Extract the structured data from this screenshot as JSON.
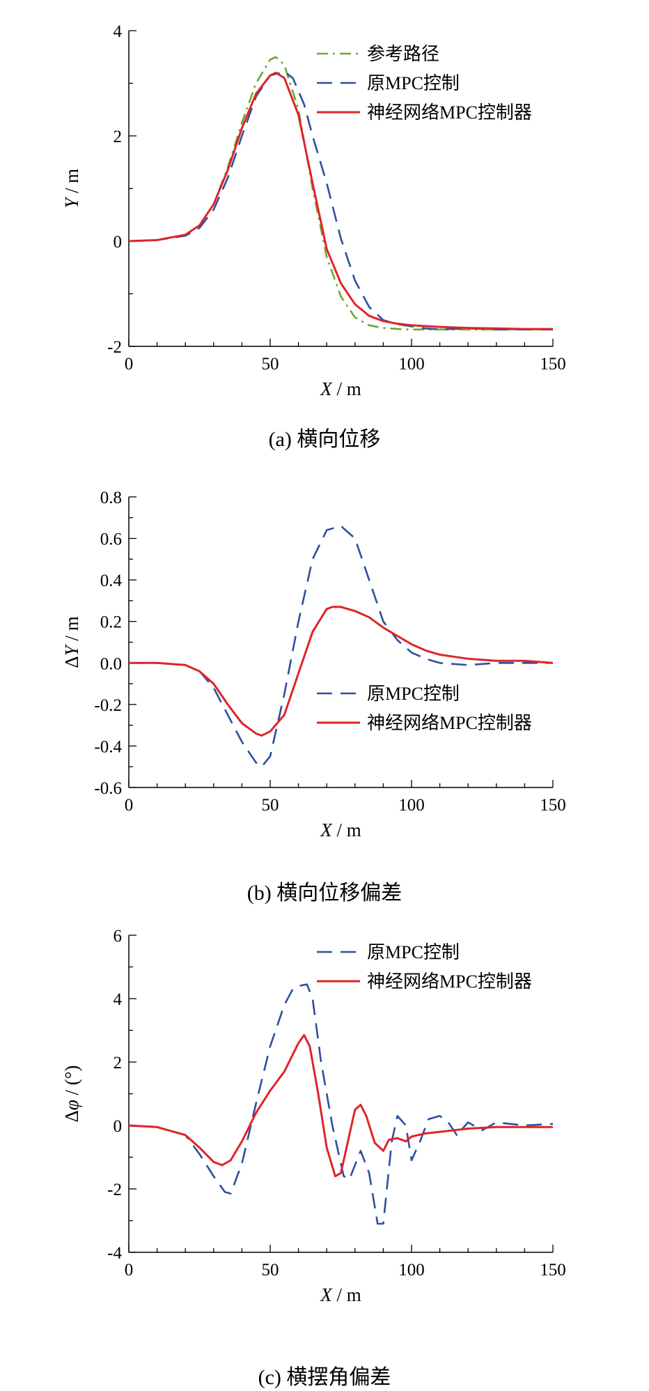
{
  "chart_data": [
    {
      "type": "line",
      "caption": "(a)  横向位移",
      "ylabel_italic": "Y",
      "ylabel_unit": " / m",
      "xlabel_italic": "X",
      "xlabel_unit": " / m",
      "xlim": [
        0,
        150
      ],
      "ylim": [
        -2,
        4
      ],
      "xticks": [
        0,
        50,
        100,
        150
      ],
      "yticks": [
        -2,
        0,
        2,
        4
      ],
      "legend_position": "top-right",
      "series": [
        {
          "name": "参考路径",
          "color": "#6aaa2a",
          "style": "dashdot",
          "x": [
            0,
            10,
            20,
            25,
            30,
            35,
            40,
            45,
            50,
            52,
            55,
            60,
            65,
            70,
            75,
            80,
            85,
            90,
            95,
            100,
            110,
            120,
            130,
            140,
            150
          ],
          "y": [
            0,
            0.02,
            0.12,
            0.3,
            0.7,
            1.4,
            2.25,
            3.0,
            3.45,
            3.5,
            3.35,
            2.5,
            1.0,
            -0.3,
            -1.05,
            -1.45,
            -1.6,
            -1.65,
            -1.67,
            -1.68,
            -1.68,
            -1.68,
            -1.68,
            -1.68,
            -1.68
          ]
        },
        {
          "name": "原MPC控制",
          "color": "#2d4f9e",
          "style": "dashed",
          "x": [
            0,
            10,
            20,
            25,
            30,
            35,
            40,
            45,
            50,
            55,
            58,
            62,
            65,
            70,
            75,
            80,
            85,
            90,
            95,
            100,
            105,
            110,
            120,
            130,
            140,
            150
          ],
          "y": [
            0,
            0.02,
            0.1,
            0.25,
            0.6,
            1.2,
            2.0,
            2.75,
            3.15,
            3.22,
            3.1,
            2.6,
            2.0,
            1.1,
            0.05,
            -0.75,
            -1.25,
            -1.5,
            -1.58,
            -1.62,
            -1.66,
            -1.68,
            -1.66,
            -1.68,
            -1.68,
            -1.68
          ]
        },
        {
          "name": "神经网络MPC控制器",
          "color": "#e0232a",
          "style": "solid",
          "x": [
            0,
            10,
            20,
            25,
            30,
            35,
            40,
            45,
            50,
            52,
            55,
            60,
            65,
            70,
            75,
            80,
            85,
            90,
            95,
            100,
            110,
            120,
            130,
            140,
            150
          ],
          "y": [
            0,
            0.02,
            0.12,
            0.3,
            0.7,
            1.35,
            2.15,
            2.8,
            3.15,
            3.2,
            3.1,
            2.4,
            1.1,
            -0.15,
            -0.8,
            -1.2,
            -1.42,
            -1.52,
            -1.57,
            -1.6,
            -1.63,
            -1.65,
            -1.66,
            -1.67,
            -1.67
          ]
        }
      ]
    },
    {
      "type": "line",
      "caption": "(b)  横向位移偏差",
      "ylabel_italic": "Y",
      "ylabel_prefix": "Δ",
      "ylabel_unit": " / m",
      "xlabel_italic": "X",
      "xlabel_unit": " / m",
      "xlim": [
        0,
        150
      ],
      "ylim": [
        -0.6,
        0.8
      ],
      "xticks": [
        0,
        50,
        100,
        150
      ],
      "yticks": [
        -0.6,
        -0.4,
        -0.2,
        0.0,
        0.2,
        0.4,
        0.6,
        0.8
      ],
      "legend_position": "center-right",
      "series": [
        {
          "name": "原MPC控制",
          "color": "#2d4f9e",
          "style": "dashed",
          "x": [
            0,
            10,
            20,
            25,
            30,
            35,
            40,
            45,
            47,
            50,
            55,
            60,
            65,
            70,
            75,
            80,
            85,
            90,
            95,
            100,
            105,
            110,
            120,
            130,
            140,
            150
          ],
          "y": [
            0,
            0,
            -0.01,
            -0.04,
            -0.12,
            -0.25,
            -0.38,
            -0.48,
            -0.5,
            -0.45,
            -0.15,
            0.2,
            0.5,
            0.64,
            0.66,
            0.6,
            0.4,
            0.2,
            0.11,
            0.05,
            0.02,
            0.0,
            -0.01,
            0.0,
            0.0,
            0.0
          ]
        },
        {
          "name": "神经网络MPC控制器",
          "color": "#e0232a",
          "style": "solid",
          "x": [
            0,
            10,
            20,
            25,
            30,
            35,
            40,
            45,
            47,
            50,
            55,
            60,
            65,
            70,
            72,
            75,
            80,
            85,
            90,
            95,
            100,
            105,
            110,
            120,
            130,
            140,
            150
          ],
          "y": [
            0,
            0,
            -0.01,
            -0.04,
            -0.1,
            -0.2,
            -0.29,
            -0.34,
            -0.35,
            -0.33,
            -0.25,
            -0.05,
            0.15,
            0.26,
            0.27,
            0.27,
            0.25,
            0.22,
            0.17,
            0.13,
            0.09,
            0.06,
            0.04,
            0.02,
            0.01,
            0.01,
            0.0
          ]
        }
      ]
    },
    {
      "type": "line",
      "caption": "(c)  横摆角偏差",
      "ylabel_italic": "φ",
      "ylabel_prefix": "Δ",
      "ylabel_unit": " / (°)",
      "xlabel_italic": "X",
      "xlabel_unit": " / m",
      "xlim": [
        0,
        150
      ],
      "ylim": [
        -4,
        6
      ],
      "xticks": [
        0,
        50,
        100,
        150
      ],
      "yticks": [
        -4,
        -2,
        0,
        2,
        4,
        6
      ],
      "legend_position": "top-right",
      "series": [
        {
          "name": "原MPC控制",
          "color": "#2d4f9e",
          "style": "dashed",
          "x": [
            0,
            10,
            20,
            25,
            30,
            34,
            36,
            40,
            45,
            50,
            55,
            58,
            60,
            63,
            65,
            68,
            72,
            76,
            78,
            82,
            85,
            88,
            90,
            93,
            95,
            98,
            100,
            103,
            106,
            110,
            113,
            116,
            120,
            125,
            130,
            140,
            150
          ],
          "y": [
            0,
            -0.05,
            -0.3,
            -0.9,
            -1.6,
            -2.1,
            -2.15,
            -1.2,
            0.7,
            2.5,
            3.8,
            4.3,
            4.4,
            4.45,
            4.0,
            2.0,
            0.0,
            -1.6,
            -1.7,
            -0.8,
            -1.5,
            -3.1,
            -3.1,
            -0.5,
            0.3,
            0.0,
            -1.1,
            -0.5,
            0.2,
            0.3,
            0.1,
            -0.3,
            0.1,
            -0.15,
            0.1,
            0.0,
            0.05
          ]
        },
        {
          "name": "神经网络MPC控制器",
          "color": "#e0232a",
          "style": "solid",
          "x": [
            0,
            10,
            20,
            25,
            30,
            33,
            36,
            40,
            45,
            50,
            55,
            60,
            62,
            64,
            67,
            70,
            73,
            75,
            78,
            80,
            82,
            84,
            87,
            90,
            92,
            95,
            98,
            100,
            105,
            110,
            120,
            130,
            140,
            150
          ],
          "y": [
            0,
            -0.05,
            -0.3,
            -0.7,
            -1.15,
            -1.25,
            -1.1,
            -0.5,
            0.4,
            1.1,
            1.7,
            2.6,
            2.85,
            2.5,
            1.0,
            -0.7,
            -1.6,
            -1.5,
            -0.3,
            0.5,
            0.65,
            0.3,
            -0.55,
            -0.8,
            -0.45,
            -0.4,
            -0.5,
            -0.35,
            -0.25,
            -0.2,
            -0.1,
            -0.05,
            -0.05,
            -0.05
          ]
        }
      ]
    }
  ]
}
